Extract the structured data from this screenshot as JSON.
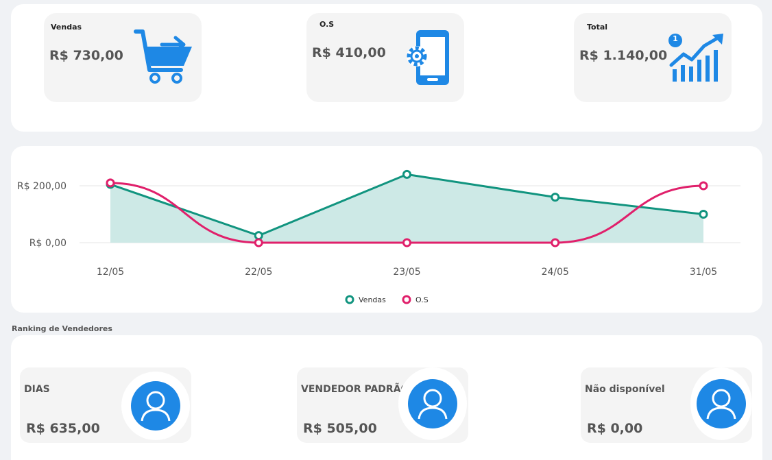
{
  "summary": {
    "vendas": {
      "title": "Vendas",
      "value": "R$ 730,00",
      "icon": "shopping-cart-icon"
    },
    "os": {
      "title": "O.S",
      "value": "R$ 410,00",
      "icon": "mobile-settings-icon"
    },
    "total": {
      "title": "Total",
      "value": "R$ 1.140,00",
      "icon": "growth-chart-icon",
      "badge": "1"
    }
  },
  "colors": {
    "accent": "#1e88e5",
    "vendas_line": "#11947f",
    "vendas_fill": "#cde9e6",
    "os_line": "#e0206b"
  },
  "chart_data": {
    "type": "line",
    "categories": [
      "12/05",
      "22/05",
      "23/05",
      "24/05",
      "31/05"
    ],
    "series": [
      {
        "name": "Vendas",
        "values": [
          205,
          25,
          240,
          160,
          100
        ],
        "area": true
      },
      {
        "name": "O.S",
        "values": [
          210,
          0,
          0,
          0,
          200
        ],
        "smooth": true
      }
    ],
    "y_ticks": [
      "R$ 0,00",
      "R$ 200,00"
    ],
    "y_tick_values": [
      0,
      200
    ],
    "grid": true,
    "legend_position": "bottom"
  },
  "ranking": {
    "title": "Ranking de Vendedores",
    "sellers": [
      {
        "name": "DIAS",
        "value": "R$ 635,00",
        "icon": "user-avatar-icon"
      },
      {
        "name": "VENDEDOR PADRÃO",
        "value": "R$ 505,00",
        "icon": "user-avatar-icon"
      },
      {
        "name": "Não disponível",
        "value": "R$ 0,00",
        "icon": "user-avatar-icon"
      }
    ]
  }
}
